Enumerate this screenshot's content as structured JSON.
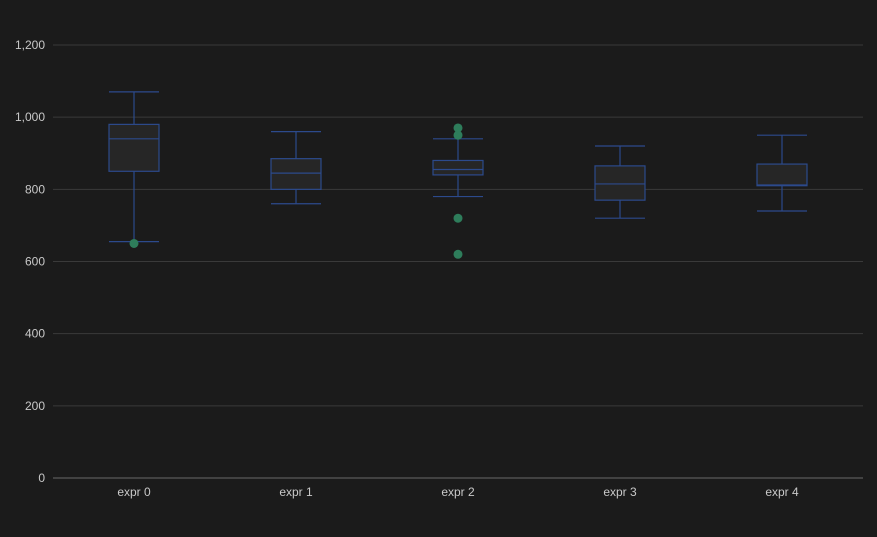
{
  "chart_data": {
    "type": "box",
    "categories": [
      "expr 0",
      "expr 1",
      "expr 2",
      "expr 3",
      "expr 4"
    ],
    "y_ticks": [
      0,
      200,
      400,
      600,
      800,
      1000,
      1200
    ],
    "y_tick_labels": [
      "0",
      "200",
      "400",
      "600",
      "800",
      "1,000",
      "1,200"
    ],
    "ylim": [
      0,
      1200
    ],
    "grid": true,
    "boxes": [
      {
        "category": "expr 0",
        "min": 655,
        "q1": 850,
        "median": 940,
        "q3": 980,
        "max": 1070,
        "outliers": [
          650
        ]
      },
      {
        "category": "expr 1",
        "min": 760,
        "q1": 800,
        "median": 845,
        "q3": 885,
        "max": 960,
        "outliers": []
      },
      {
        "category": "expr 2",
        "min": 780,
        "q1": 840,
        "median": 855,
        "q3": 880,
        "max": 940,
        "outliers": [
          970,
          950,
          720,
          620
        ]
      },
      {
        "category": "expr 3",
        "min": 720,
        "q1": 770,
        "median": 815,
        "q3": 865,
        "max": 920,
        "outliers": []
      },
      {
        "category": "expr 4",
        "min": 740,
        "q1": 810,
        "median": 812,
        "q3": 870,
        "max": 950,
        "outliers": []
      }
    ],
    "colors": {
      "background": "#1b1b1b",
      "grid": "#3a3a3a",
      "axis": "#6a6a6a",
      "box_stroke": "#2c4a8c",
      "box_fill": "#262626",
      "outlier": "#2e7d5b",
      "text": "#c9c9c9"
    }
  }
}
